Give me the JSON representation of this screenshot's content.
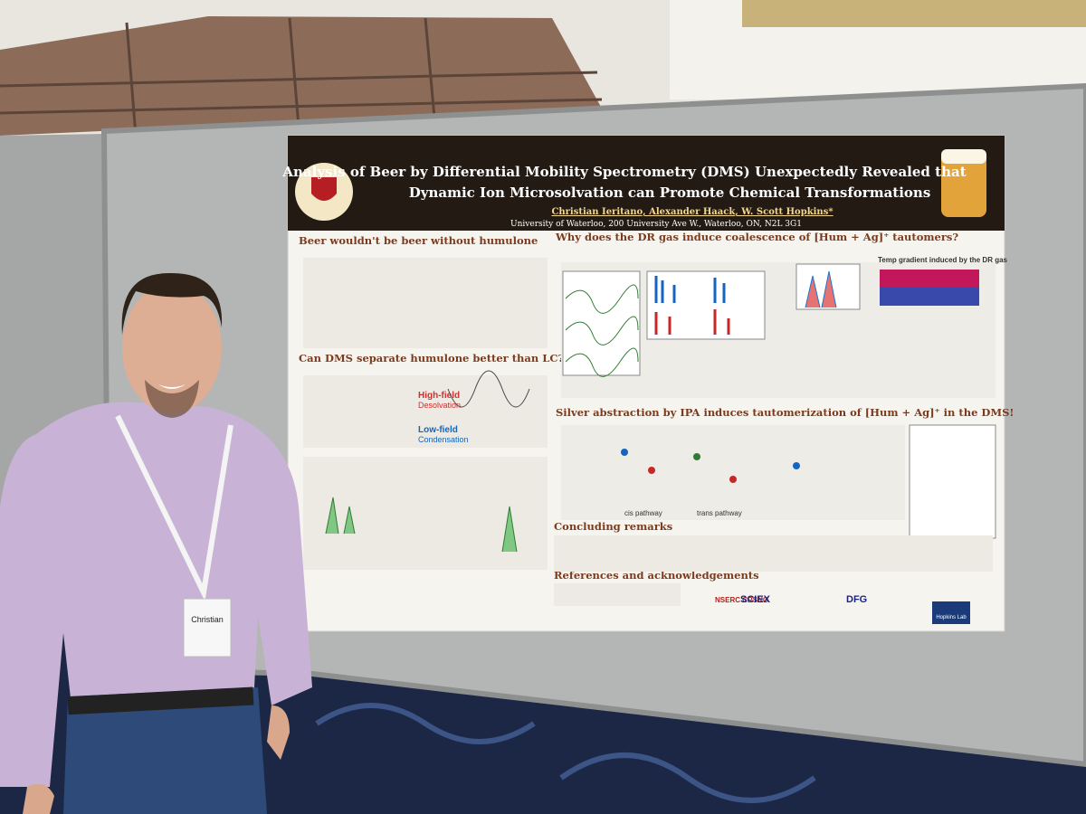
{
  "poster": {
    "title": [
      "Analysis of Beer by Differential Mobility Spectrometry (DMS) Unexpectedly Revealed that",
      "Dynamic Ion Microsolvation can Promote Chemical Transformations"
    ],
    "authors": "Christian Ieritano, Alexander Haack, W. Scott Hopkins*",
    "affiliation": "University of Waterloo, 200 University Ave W., Waterloo, ON, N2L 3G1",
    "sections": [
      "Beer wouldn't be beer without humulone",
      "Why does the DR gas induce coalescence of [Hum + Ag]⁺ tautomers?",
      "Can DMS separate humulone better than LC?",
      "Silver abstraction by IPA induces tautomerization of [Hum + Ag]⁺ in the DMS!",
      "Concluding remarks",
      "References and acknowledgements"
    ],
    "figure_labels": [
      "High-field",
      "Desolvation",
      "Low-field",
      "Condensation",
      "Temp gradient induced by the DR gas",
      "cis pathway",
      "trans pathway"
    ],
    "sponsors": [
      "NSERC CRSNG",
      "SCIEX",
      "DFG",
      "Hopkins Lab"
    ]
  },
  "badge": {
    "name": "Christian"
  }
}
